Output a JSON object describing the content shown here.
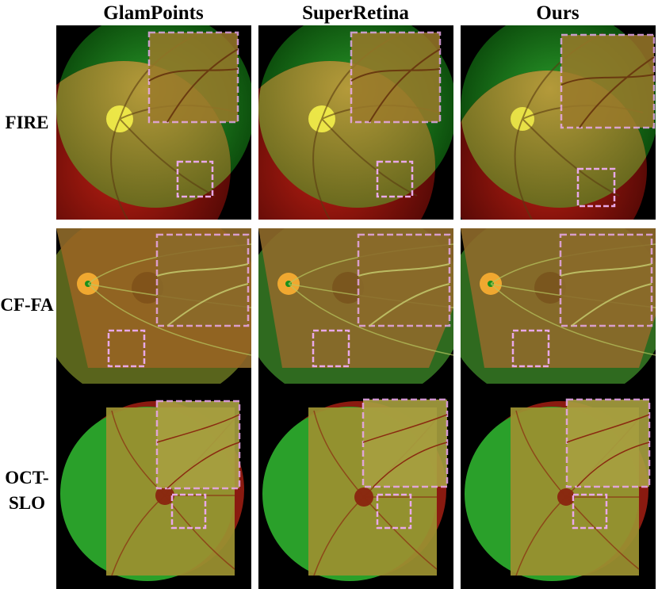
{
  "columns": [
    {
      "label": "GlamPoints"
    },
    {
      "label": "SuperRetina"
    },
    {
      "label": "Ours"
    }
  ],
  "rows": [
    {
      "label": "FIRE"
    },
    {
      "label": "CF-FA"
    },
    {
      "label_line1": "OCT-",
      "label_line2": "SLO"
    }
  ],
  "colors": {
    "inset_border": "#e8a8e8",
    "green_channel": "#1f8f1f",
    "red_channel": "#9a1010",
    "overlap": "#8f8a2a"
  }
}
